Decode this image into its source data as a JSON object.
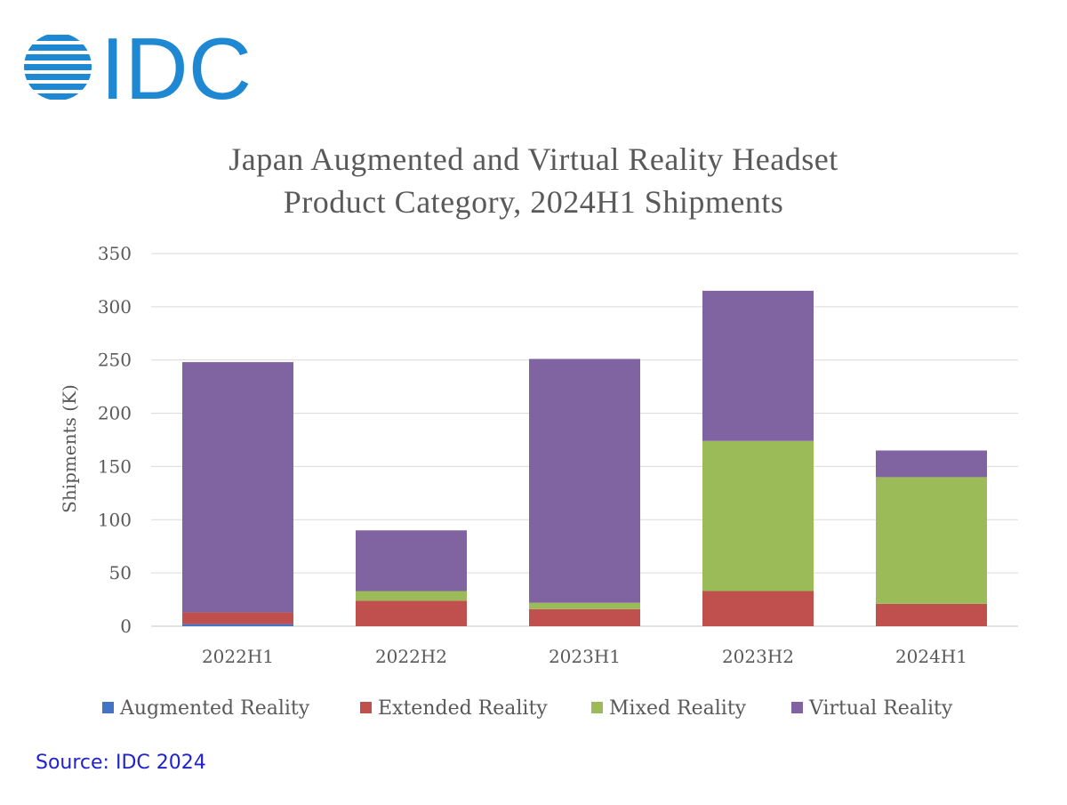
{
  "logo_text": "IDC",
  "chart_data": {
    "type": "bar",
    "stacked": true,
    "title": "Japan Augmented and Virtual Reality Headset Product Category, 2024H1 Shipments",
    "title_lines": [
      "Japan Augmented and Virtual Reality Headset",
      "Product Category, 2024H1 Shipments"
    ],
    "ylabel": "Shipments (K)",
    "xlabel": "",
    "ylim": [
      0,
      350
    ],
    "yticks": [
      0,
      50,
      100,
      150,
      200,
      250,
      300,
      350
    ],
    "grid": true,
    "legend": "bottom",
    "categories": [
      "2022H1",
      "2022H2",
      "2023H1",
      "2023H2",
      "2024H1"
    ],
    "series": [
      {
        "name": "Augmented Reality",
        "color": "#4472c4",
        "values": [
          2,
          0,
          0,
          0,
          0
        ]
      },
      {
        "name": "Extended Reality",
        "color": "#c0504d",
        "values": [
          11,
          24,
          16,
          33,
          21
        ]
      },
      {
        "name": "Mixed Reality",
        "color": "#9bbb59",
        "values": [
          0,
          9,
          6,
          141,
          119
        ]
      },
      {
        "name": "Virtual Reality",
        "color": "#8064a2",
        "values": [
          235,
          57,
          229,
          141,
          25
        ]
      }
    ]
  },
  "source": "Source: IDC 2024"
}
